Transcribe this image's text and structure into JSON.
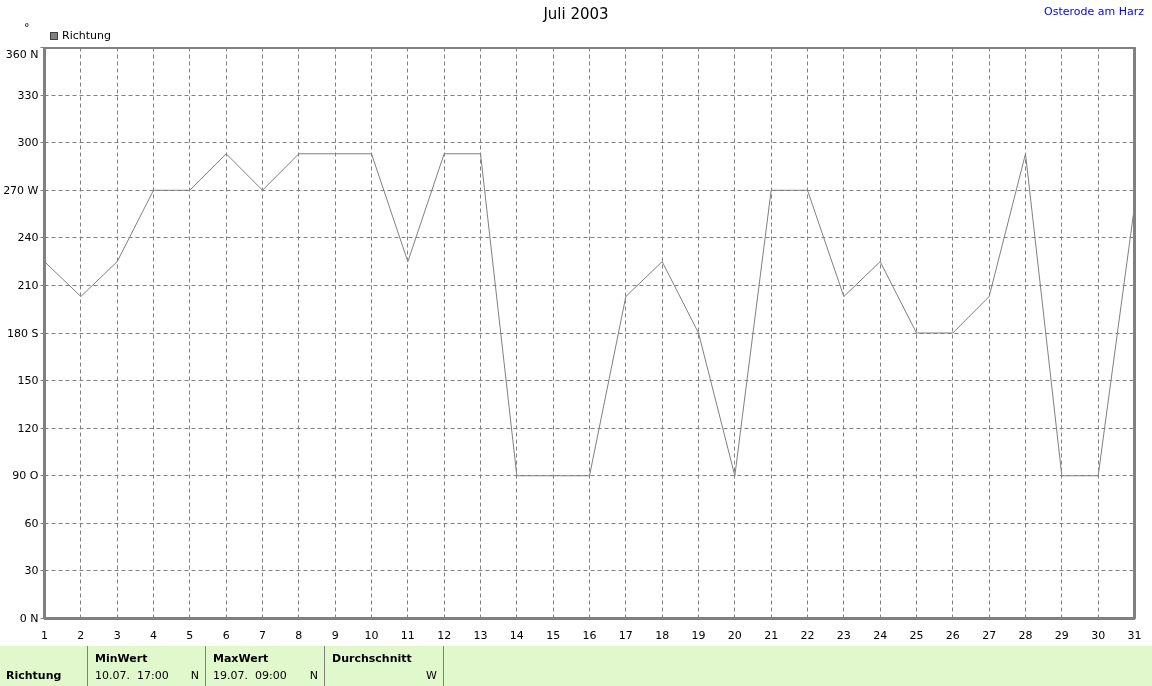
{
  "chart_data": {
    "type": "line",
    "title": "Juli 2003",
    "subtitle": "Osterode am Harz",
    "ylabel": "°",
    "x": [
      1,
      2,
      3,
      4,
      5,
      6,
      7,
      8,
      9,
      10,
      11,
      12,
      13,
      14,
      15,
      16,
      17,
      18,
      19,
      20,
      21,
      22,
      23,
      24,
      25,
      26,
      27,
      28,
      29,
      30,
      31
    ],
    "series": [
      {
        "name": "Richtung",
        "color": "#808080",
        "values": [
          225,
          203,
          225,
          270,
          270,
          293,
          270,
          293,
          293,
          293,
          225,
          293,
          293,
          90,
          90,
          90,
          203,
          225,
          180,
          90,
          270,
          270,
          203,
          225,
          180,
          180,
          203,
          293,
          90,
          90,
          260
        ]
      }
    ],
    "xlim": [
      1,
      31
    ],
    "xticks": [
      1,
      2,
      3,
      4,
      5,
      6,
      7,
      8,
      9,
      10,
      11,
      12,
      13,
      14,
      15,
      16,
      17,
      18,
      19,
      20,
      21,
      22,
      23,
      24,
      25,
      26,
      27,
      28,
      29,
      30,
      31
    ],
    "ylim": [
      0,
      360
    ],
    "yticks": [
      {
        "value": 0,
        "label": "0 N"
      },
      30,
      60,
      {
        "value": 90,
        "label": "90 O"
      },
      120,
      150,
      {
        "value": 180,
        "label": "180 S"
      },
      210,
      240,
      {
        "value": 270,
        "label": "270 W"
      },
      300,
      330,
      {
        "value": 360,
        "label": "360 N"
      }
    ],
    "grid": true,
    "legend": "top left",
    "marker": "none",
    "line_style": "solid",
    "annotations": [
      "Richtung",
      "MinWert",
      "10.07.  17:00",
      "N",
      "MaxWert",
      "19.07.  09:00",
      "N",
      "Durchschnitt",
      "W"
    ]
  }
}
